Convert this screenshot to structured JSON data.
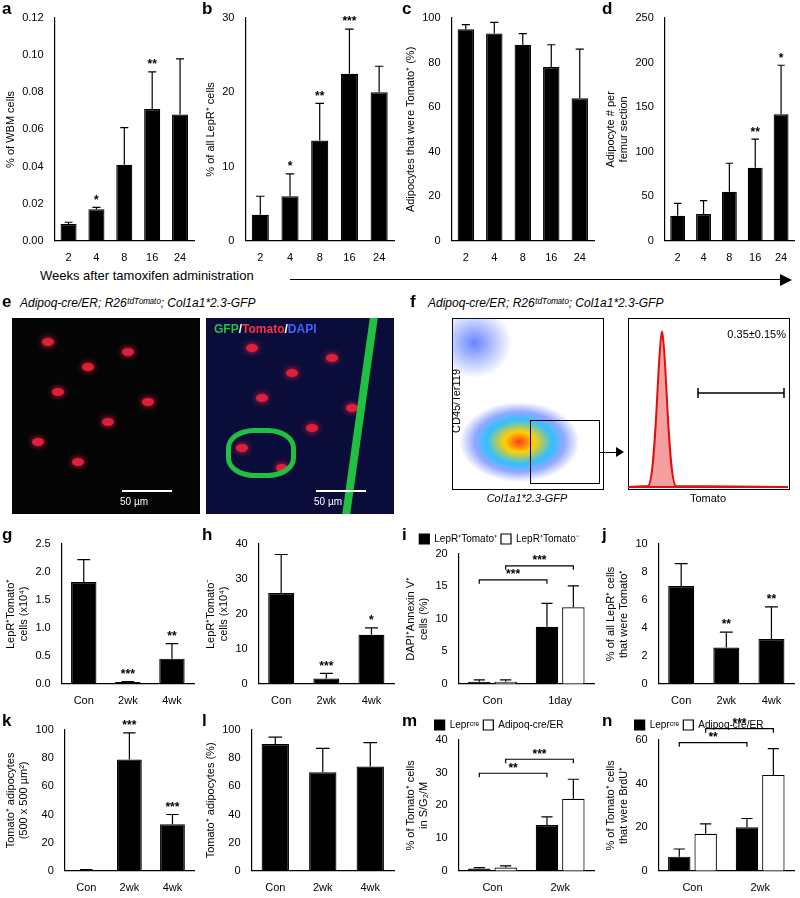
{
  "chart_data": [
    {
      "panel": "a",
      "type": "bar",
      "y_label": "% of WBM cells",
      "categories": [
        "2",
        "4",
        "8",
        "16",
        "24"
      ],
      "series": [
        {
          "color": "#000000",
          "values": [
            0.009,
            0.017,
            0.041,
            0.071,
            0.068
          ],
          "errors": [
            0.001,
            0.001,
            0.02,
            0.02,
            0.03
          ],
          "significance": [
            null,
            "*",
            null,
            "**",
            null
          ]
        }
      ],
      "ylim": [
        0,
        0.12
      ],
      "yticks": [
        {
          "value": 0,
          "label": "0.00"
        },
        {
          "value": 0.02,
          "label": "0.02"
        },
        {
          "value": 0.04,
          "label": "0.04"
        },
        {
          "value": 0.06,
          "label": "0.06"
        },
        {
          "value": 0.08,
          "label": "0.08"
        },
        {
          "value": 0.1,
          "label": "0.10"
        },
        {
          "value": 0.12,
          "label": "0.12"
        }
      ],
      "grid": false
    },
    {
      "panel": "b",
      "type": "bar",
      "y_label": "% of all LepR⁺ cells",
      "categories": [
        "2",
        "4",
        "8",
        "16",
        "24"
      ],
      "series": [
        {
          "color": "#000000",
          "values": [
            3.5,
            6,
            13.5,
            22.5,
            20
          ],
          "errors": [
            2.5,
            3,
            5,
            6,
            3.5
          ],
          "significance": [
            null,
            "*",
            "**",
            "***",
            null
          ]
        }
      ],
      "ylim": [
        0,
        30
      ],
      "yticks": [
        0,
        10,
        20,
        30
      ],
      "grid": false
    },
    {
      "panel": "c",
      "type": "bar",
      "y_label": "Adipocytes that were Tomato⁺ (%)",
      "categories": [
        "2",
        "4",
        "8",
        "16",
        "24"
      ],
      "series": [
        {
          "color": "#000000",
          "values": [
            95,
            93,
            88,
            78,
            64
          ],
          "errors": [
            2,
            5,
            5,
            10,
            22
          ],
          "significance": [
            null,
            null,
            null,
            null,
            null
          ]
        }
      ],
      "ylim": [
        0,
        100
      ],
      "yticks": [
        0,
        20,
        40,
        60,
        80,
        100
      ],
      "grid": false
    },
    {
      "panel": "d",
      "type": "bar",
      "y_label": [
        "Adipocyte # per",
        "femur section"
      ],
      "categories": [
        "2",
        "4",
        "8",
        "16",
        "24"
      ],
      "series": [
        {
          "color": "#000000",
          "values": [
            28,
            30,
            55,
            82,
            142
          ],
          "errors": [
            14,
            15,
            32,
            32,
            55
          ],
          "significance": [
            null,
            null,
            null,
            "**",
            "*"
          ]
        }
      ],
      "ylim": [
        0,
        250
      ],
      "yticks": [
        0,
        50,
        100,
        150,
        200,
        250
      ],
      "grid": false
    },
    {
      "panel": "g",
      "type": "bar",
      "y_label": [
        "LepR⁺Tomato⁺",
        "cells (x10⁴)"
      ],
      "categories": [
        "Con",
        "2wk",
        "4wk"
      ],
      "series": [
        {
          "color": "#000000",
          "values": [
            1.82,
            0.03,
            0.45
          ],
          "errors": [
            0.4,
            0.01,
            0.27
          ],
          "significance": [
            null,
            "***",
            "**"
          ]
        }
      ],
      "ylim": [
        0,
        2.5
      ],
      "yticks": [
        {
          "value": 0,
          "label": "0.0"
        },
        0.5,
        {
          "value": 1,
          "label": "1.0"
        },
        1.5,
        {
          "value": 2,
          "label": "2.0"
        },
        2.5
      ],
      "grid": false
    },
    {
      "panel": "h",
      "type": "bar",
      "y_label": [
        "LepR⁺Tomato⁻",
        "cells (x10⁴)"
      ],
      "categories": [
        "Con",
        "2wk",
        "4wk"
      ],
      "series": [
        {
          "color": "#000000",
          "values": [
            26,
            1.5,
            14
          ],
          "errors": [
            11,
            1.5,
            2
          ],
          "significance": [
            null,
            "***",
            "*"
          ]
        }
      ],
      "ylim": [
        0,
        40
      ],
      "yticks": [
        0,
        10,
        20,
        30,
        40
      ],
      "grid": false
    },
    {
      "panel": "i",
      "type": "bar",
      "y_label": [
        "DAPI⁺Annexin V⁺",
        "cells (%)"
      ],
      "categories": [
        "Con",
        "1day"
      ],
      "series": [
        {
          "name": "LepR⁺Tomato⁺",
          "color": "#000000",
          "values": [
            0.3,
            8.8
          ],
          "errors": [
            0.3,
            3.6
          ]
        },
        {
          "name": "LepR⁺Tomato⁻",
          "color": "#ffffff",
          "values": [
            0.3,
            11.8
          ],
          "errors": [
            0.3,
            3.3
          ]
        }
      ],
      "comparisons": [
        {
          "series": 0,
          "from": 0,
          "to": 1,
          "label": "***"
        },
        {
          "series": 1,
          "from": 0,
          "to": 1,
          "label": "***"
        }
      ],
      "legend": "top",
      "ylim": [
        0,
        20
      ],
      "yticks": [
        0,
        5,
        10,
        15,
        20
      ],
      "grid": false
    },
    {
      "panel": "j",
      "type": "bar",
      "y_label": [
        "% of all LepR⁺ cells",
        "that were Tomato⁺"
      ],
      "categories": [
        "Con",
        "2wk",
        "4wk"
      ],
      "series": [
        {
          "color": "#000000",
          "values": [
            7,
            2.6,
            3.2
          ],
          "errors": [
            1.6,
            1.1,
            2.3
          ],
          "significance": [
            null,
            "**",
            "**"
          ]
        }
      ],
      "ylim": [
        0,
        10
      ],
      "yticks": [
        0,
        2,
        4,
        6,
        8,
        10
      ],
      "grid": false
    },
    {
      "panel": "k",
      "type": "bar",
      "y_label": [
        "Tomato⁺ adipocytes",
        "(500 x 500 µm²)"
      ],
      "categories": [
        "Con",
        "2wk",
        "4wk"
      ],
      "series": [
        {
          "color": "#000000",
          "values": [
            0.5,
            79,
            33
          ],
          "errors": [
            0.3,
            19,
            7
          ],
          "significance": [
            null,
            "***",
            "***"
          ]
        }
      ],
      "ylim": [
        0,
        100
      ],
      "yticks": [
        0,
        20,
        40,
        60,
        80,
        100
      ],
      "grid": false
    },
    {
      "panel": "l",
      "type": "bar",
      "y_label": "Tomato⁺ adipocytes (%)",
      "categories": [
        "Con",
        "2wk",
        "4wk"
      ],
      "series": [
        {
          "color": "#000000",
          "values": [
            90,
            70,
            74
          ],
          "errors": [
            5,
            17,
            17
          ],
          "significance": [
            null,
            null,
            null
          ]
        }
      ],
      "ylim": [
        0,
        100
      ],
      "yticks": [
        0,
        20,
        40,
        60,
        80,
        100
      ],
      "grid": false
    },
    {
      "panel": "m",
      "type": "bar",
      "y_label": [
        "% of Tomato⁺ cells",
        "in S/G₂/M"
      ],
      "categories": [
        "Con",
        "2wk"
      ],
      "series": [
        {
          "name": "Leprᶜʳᵉ",
          "color": "#000000",
          "values": [
            0.7,
            14
          ],
          "errors": [
            0.3,
            2.5
          ]
        },
        {
          "name": "Adipoq-cre/ER",
          "color": "#ffffff",
          "values": [
            1,
            22
          ],
          "errors": [
            0.5,
            6
          ]
        }
      ],
      "comparisons": [
        {
          "series": 0,
          "from": 0,
          "to": 1,
          "label": "**"
        },
        {
          "series": 1,
          "from": 0,
          "to": 1,
          "label": "***"
        }
      ],
      "legend": "top",
      "ylim": [
        0,
        40
      ],
      "yticks": [
        0,
        10,
        20,
        30,
        40
      ],
      "grid": false
    },
    {
      "panel": "n",
      "type": "bar",
      "y_label": [
        "% of Tomato⁺ cells",
        "that were BrdU⁺"
      ],
      "categories": [
        "Con",
        "2wk"
      ],
      "series": [
        {
          "name": "Leprᶜʳᵉ",
          "color": "#000000",
          "values": [
            6.5,
            20
          ],
          "errors": [
            3.5,
            4
          ]
        },
        {
          "name": "Adipoq-cre/ER",
          "color": "#ffffff",
          "values": [
            17,
            44
          ],
          "errors": [
            4.5,
            12
          ]
        }
      ],
      "comparisons": [
        {
          "series": 0,
          "from": 0,
          "to": 1,
          "label": "**"
        },
        {
          "series": 1,
          "from": 0,
          "to": 1,
          "label": "***"
        }
      ],
      "legend": "top",
      "ylim": [
        0,
        60
      ],
      "yticks": [
        0,
        20,
        40,
        60
      ],
      "grid": false
    }
  ],
  "shared_x_label": {
    "text": "Weeks after tamoxifen administration",
    "panels": [
      "a",
      "b",
      "c",
      "d"
    ]
  },
  "panel_e": {
    "panel": "e",
    "title": "Adipoq-cre/ER; R26ᵗᵈᵀᵒᵐᵃᵗᵒ; Col1a1*2.3-GFP",
    "stain_label": "GFP/Tomato/DAPI",
    "scale_bars": [
      "50 µm",
      "50 µm"
    ]
  },
  "panel_f": {
    "panel": "f",
    "title": "Adipoq-cre/ER; R26ᵗᵈᵀᵒᵐᵃᵗᵒ; Col1a1*2.3-GFP",
    "y_label": "CD45/Ter119",
    "x_label": "Col1a1*2.3-GFP",
    "histogram_x_label": "Tomato",
    "gated_percent": "0.35±0.15%"
  }
}
